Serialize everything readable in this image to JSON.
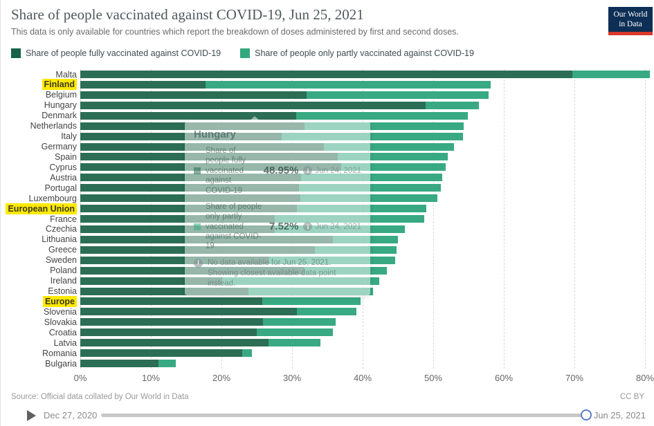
{
  "header": {
    "title": "Share of people vaccinated against COVID-19, Jun 25, 2021",
    "subtitle": "This data is only available for countries which report the breakdown of doses administered by first and second doses.",
    "logo_line1": "Our World",
    "logo_line2": "in Data"
  },
  "colors": {
    "fully": "#2c6e55",
    "partly": "#38a983",
    "legend_fully": "#166249",
    "legend_partly": "#35a87d",
    "highlight": "#ffe900",
    "logo_bg": "#0e2f55",
    "logo_red": "#d93a2b"
  },
  "legend": {
    "items": [
      {
        "label": "Share of people fully vaccinated against COVID-19",
        "color": "#166249"
      },
      {
        "label": "Share of people only partly vaccinated against COVID-19",
        "color": "#35a87d"
      }
    ]
  },
  "chart_data": {
    "type": "bar",
    "orientation": "horizontal",
    "stacked": true,
    "unit": "%",
    "xlim": [
      0,
      80
    ],
    "x_ticks": [
      "0%",
      "10%",
      "20%",
      "30%",
      "40%",
      "50%",
      "60%",
      "70%",
      "80%"
    ],
    "grid": "dashed-vertical",
    "highlighted": [
      "Finland",
      "European Union",
      "Europe"
    ],
    "categories": [
      "Malta",
      "Finland",
      "Belgium",
      "Hungary",
      "Denmark",
      "Netherlands",
      "Italy",
      "Germany",
      "Spain",
      "Cyprus",
      "Austria",
      "Portugal",
      "Luxembourg",
      "European Union",
      "France",
      "Czechia",
      "Lithuania",
      "Greece",
      "Sweden",
      "Poland",
      "Ireland",
      "Estonia",
      "Europe",
      "Slovenia",
      "Slovakia",
      "Croatia",
      "Latvia",
      "Romania",
      "Bulgaria"
    ],
    "series": [
      {
        "name": "Share of people fully vaccinated against COVID-19",
        "color": "#2c6e55",
        "values": [
          69.7,
          17.7,
          32.1,
          48.95,
          30.6,
          31.8,
          28.5,
          34.5,
          36.5,
          37.0,
          31.3,
          31.0,
          31.2,
          30.7,
          27.5,
          27.5,
          35.8,
          33.2,
          26.8,
          31.8,
          20.1,
          23.8,
          25.8,
          30.7,
          25.9,
          25.0,
          26.7,
          22.9,
          11.1
        ]
      },
      {
        "name": "Share of people only partly vaccinated against COVID-19",
        "color": "#38a983",
        "values": [
          11.0,
          40.4,
          25.7,
          7.52,
          24.3,
          22.5,
          25.7,
          18.4,
          15.6,
          14.8,
          20.0,
          20.1,
          19.4,
          18.3,
          21.2,
          18.5,
          9.2,
          11.6,
          17.8,
          11.6,
          22.3,
          17.7,
          13.9,
          8.4,
          10.3,
          10.8,
          7.3,
          1.4,
          2.4
        ]
      }
    ]
  },
  "tooltip": {
    "country": "Hungary",
    "rows": [
      {
        "label": "Share of people fully vaccinated against COVID-19",
        "value": "48.95%",
        "date": "Jun 24, 2021",
        "color": "#2c6e55"
      },
      {
        "label": "Share of people only partly vaccinated against COVID-19",
        "value": "7.52%",
        "date": "Jun 24, 2021",
        "color": "#38a983"
      }
    ],
    "note": "No data available for Jun 25, 2021. Showing closest available data point instead."
  },
  "footer": {
    "source": "Source: Official data collated by Our World in Data",
    "license": "CC BY"
  },
  "timeline": {
    "start": "Dec 27, 2020",
    "end": "Jun 25, 2021"
  }
}
